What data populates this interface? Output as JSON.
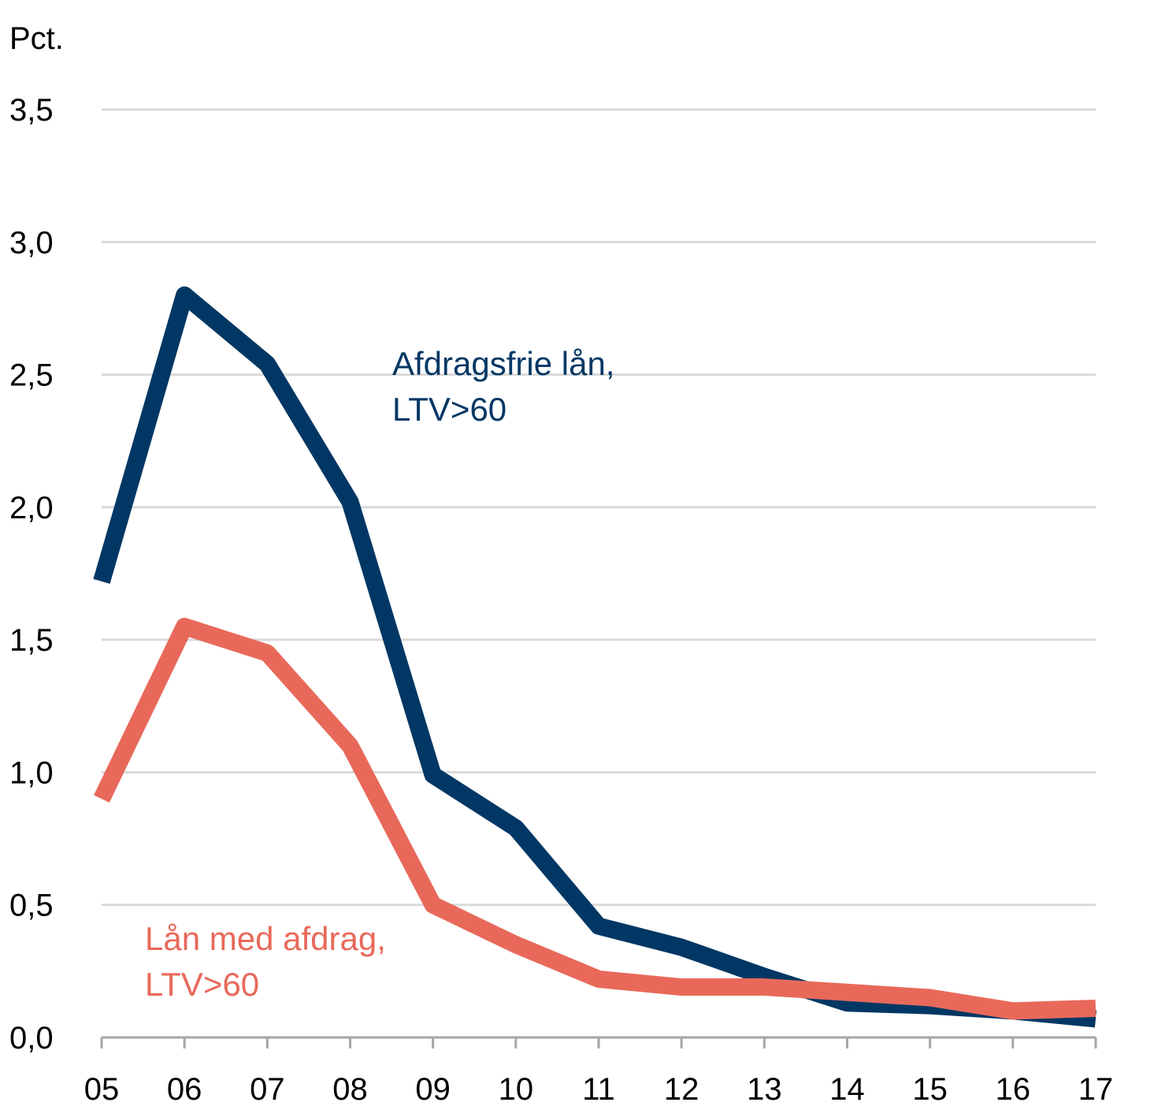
{
  "chart_data": {
    "type": "line",
    "y_unit_label": "Pct.",
    "categories": [
      "05",
      "06",
      "07",
      "08",
      "09",
      "10",
      "11",
      "12",
      "13",
      "14",
      "15",
      "16",
      "17"
    ],
    "ylim": [
      0,
      3.5
    ],
    "yticks": [
      "0,0",
      "0,5",
      "1,0",
      "1,5",
      "2,0",
      "2,5",
      "3,0",
      "3,5"
    ],
    "ytick_values": [
      0,
      0.5,
      1.0,
      1.5,
      2.0,
      2.5,
      3.0,
      3.5
    ],
    "grid": true,
    "series": [
      {
        "name": "Afdragsfrie lån, LTV>60",
        "label_lines": [
          "Afdragsfrie lån,",
          "LTV>60"
        ],
        "color": "#003764",
        "values": [
          1.72,
          2.8,
          2.54,
          2.02,
          0.99,
          0.79,
          0.42,
          0.34,
          0.23,
          0.13,
          0.12,
          0.1,
          0.07
        ]
      },
      {
        "name": "Lån med afdrag, LTV>60",
        "label_lines": [
          "Lån med afdrag,",
          "LTV>60"
        ],
        "color": "#E8695A",
        "values": [
          0.9,
          1.55,
          1.45,
          1.1,
          0.5,
          0.35,
          0.22,
          0.19,
          0.19,
          0.17,
          0.15,
          0.1,
          0.11
        ]
      }
    ]
  }
}
